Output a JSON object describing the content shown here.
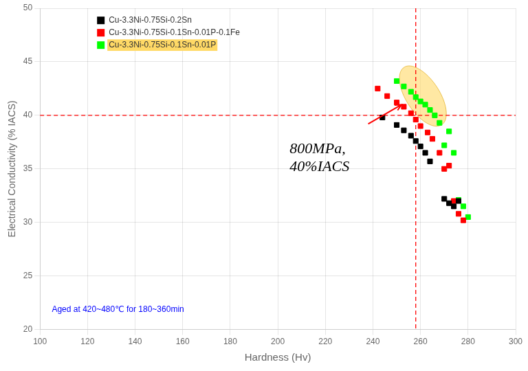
{
  "chart_data": {
    "type": "scatter",
    "xlabel": "Hardness (Hv)",
    "ylabel": "Electrical Conductivity (% IACS)",
    "xlim": [
      100,
      300
    ],
    "ylim": [
      20,
      50
    ],
    "xticks": [
      100,
      120,
      140,
      160,
      180,
      200,
      220,
      240,
      260,
      280,
      300
    ],
    "yticks": [
      20,
      25,
      30,
      35,
      40,
      45,
      50
    ],
    "grid": true,
    "legend": "upper left",
    "marker": "square",
    "series": [
      {
        "name": "Cu-3.3Ni-0.75Si-0.2Sn",
        "color": "black",
        "x": [
          244,
          250,
          253,
          256,
          258,
          260,
          262,
          264,
          270,
          272,
          274,
          276
        ],
        "values": [
          39.8,
          39.1,
          38.6,
          38.1,
          37.6,
          37.1,
          36.5,
          35.7,
          32.2,
          31.8,
          31.5,
          32.0
        ]
      },
      {
        "name": "Cu-3.3Ni-0.75Si-0.1Sn-0.01P-0.1Fe",
        "color": "red",
        "x": [
          242,
          246,
          250,
          253,
          256,
          258,
          260,
          263,
          265,
          268,
          272,
          270,
          274,
          276,
          278
        ],
        "values": [
          42.5,
          41.8,
          41.2,
          40.8,
          40.2,
          39.6,
          39.0,
          38.4,
          37.8,
          36.5,
          35.3,
          35.0,
          32.0,
          30.8,
          30.2
        ]
      },
      {
        "name": "Cu-3.3Ni-0.75Si-0.1Sn-0.01P",
        "color": "lime",
        "highlight": "#FFD966",
        "x": [
          250,
          253,
          256,
          258,
          260,
          262,
          264,
          266,
          268,
          272,
          270,
          274,
          276,
          278,
          280
        ],
        "values": [
          43.2,
          42.7,
          42.2,
          41.7,
          41.3,
          41.0,
          40.5,
          40.0,
          39.3,
          38.5,
          37.2,
          36.5,
          32.1,
          31.5,
          30.5
        ]
      }
    ],
    "reference_lines": [
      {
        "axis": "y",
        "value": 40.0,
        "color": "red",
        "line_style": "dashed"
      },
      {
        "axis": "x",
        "value": 258.0,
        "color": "red",
        "line_style": "dashed"
      }
    ],
    "highlight_ellipse": {
      "center": [
        261,
        41.8
      ],
      "width": 20,
      "height": 4.5,
      "color": "#FFD966",
      "edge_color": "#DAA000"
    },
    "annotations": [
      {
        "text": "800MPa,\n40%IACS",
        "x": 205,
        "y": 36.0,
        "color": "black"
      },
      {
        "text": "Aged at 420~480℃ for 180~360min",
        "x": 105,
        "y": 21.5,
        "color": "blue"
      }
    ],
    "arrow": {
      "from": [
        238,
        39.2
      ],
      "to": [
        252,
        41.0
      ],
      "color": "red"
    }
  }
}
